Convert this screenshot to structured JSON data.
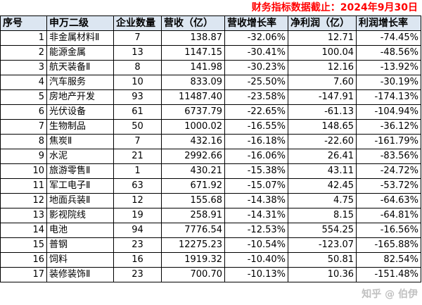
{
  "caption": "财务指标数据截止：2024年9月30日",
  "columns": [
    "序号",
    "申万二级",
    "企业数量",
    "营收（亿）",
    "营收增长率",
    "净利润（亿）",
    "利润增长率"
  ],
  "rows": [
    [
      "1",
      "非金属材料Ⅱ",
      "7",
      "138.87",
      "-32.06%",
      "12.71",
      "-74.45%"
    ],
    [
      "2",
      "能源金属",
      "13",
      "1147.15",
      "-30.41%",
      "100.04",
      "-48.56%"
    ],
    [
      "3",
      "航天装备Ⅱ",
      "8",
      "141.98",
      "-30.23%",
      "12.16",
      "-13.92%"
    ],
    [
      "4",
      "汽车服务",
      "10",
      "833.09",
      "-25.50%",
      "7.60",
      "-30.19%"
    ],
    [
      "5",
      "房地产开发",
      "93",
      "11487.40",
      "-23.58%",
      "-147.91",
      "-174.13%"
    ],
    [
      "6",
      "光伏设备",
      "61",
      "6737.79",
      "-22.65%",
      "-61.13",
      "-104.94%"
    ],
    [
      "7",
      "生物制品",
      "50",
      "1000.02",
      "-16.55%",
      "148.65",
      "-36.12%"
    ],
    [
      "8",
      "焦炭Ⅱ",
      "7",
      "432.16",
      "-16.18%",
      "-22.60",
      "-161.79%"
    ],
    [
      "9",
      "水泥",
      "21",
      "2992.66",
      "-16.06%",
      "26.41",
      "-83.56%"
    ],
    [
      "10",
      "旅游零售Ⅱ",
      "1",
      "430.21",
      "-15.38%",
      "43.11",
      "-24.72%"
    ],
    [
      "11",
      "军工电子Ⅱ",
      "63",
      "671.92",
      "-15.07%",
      "42.45",
      "-53.72%"
    ],
    [
      "12",
      "地面兵装Ⅱ",
      "12",
      "155.68",
      "-14.38%",
      "4.75",
      "-64.63%"
    ],
    [
      "13",
      "影视院线",
      "19",
      "258.91",
      "-14.31%",
      "8.15",
      "-64.81%"
    ],
    [
      "14",
      "电池",
      "94",
      "7776.54",
      "-12.53%",
      "554.25",
      "-16.56%"
    ],
    [
      "15",
      "普钢",
      "23",
      "12275.23",
      "-10.54%",
      "-123.07",
      "-165.88%"
    ],
    [
      "16",
      "饲料",
      "16",
      "1919.32",
      "-10.40%",
      "50.81",
      "82.54%"
    ],
    [
      "17",
      "装修装饰Ⅱ",
      "23",
      "700.70",
      "-10.13%",
      "10.36",
      "-151.48%"
    ]
  ],
  "watermark": "知乎 @ 伯伊"
}
